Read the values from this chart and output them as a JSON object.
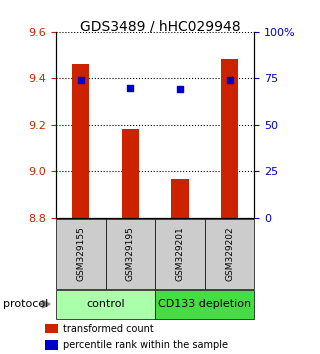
{
  "title": "GDS3489 / hHC029948",
  "samples": [
    "GSM329155",
    "GSM329195",
    "GSM329201",
    "GSM329202"
  ],
  "bar_values": [
    9.46,
    9.18,
    8.965,
    9.485
  ],
  "dot_values": [
    74,
    70,
    69,
    74
  ],
  "ymin": 8.8,
  "ymax": 9.6,
  "y_ticks": [
    8.8,
    9.0,
    9.2,
    9.4,
    9.6
  ],
  "y2_ticks": [
    0,
    25,
    50,
    75,
    100
  ],
  "bar_color": "#cc2200",
  "dot_color": "#0000cc",
  "groups": [
    {
      "label": "control",
      "span": [
        0,
        1
      ],
      "color": "#aaffaa"
    },
    {
      "label": "CD133 depletion",
      "span": [
        2,
        3
      ],
      "color": "#44dd44"
    }
  ],
  "group_label": "protocol",
  "legend_bar": "transformed count",
  "legend_dot": "percentile rank within the sample",
  "tick_color_left": "#cc2200",
  "tick_color_right": "#0000cc",
  "sample_box_color": "#cccccc",
  "bar_width": 0.35
}
